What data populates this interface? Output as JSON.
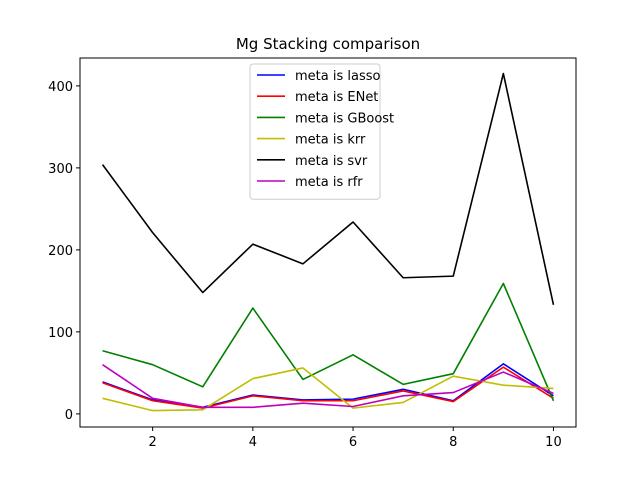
{
  "chart_data": {
    "type": "line",
    "title": "Mg Stacking comparison",
    "xlabel": "",
    "ylabel": "",
    "x": [
      1,
      2,
      3,
      4,
      5,
      6,
      7,
      8,
      9,
      10
    ],
    "xlim": [
      0.55,
      10.45
    ],
    "ylim": [
      -16,
      434
    ],
    "xticks": [
      2,
      4,
      6,
      8,
      10
    ],
    "yticks": [
      0,
      100,
      200,
      300,
      400
    ],
    "grid": false,
    "legend_position": "top-center",
    "series": [
      {
        "name": "meta is lasso",
        "color": "#0000ff",
        "values": [
          39,
          17,
          8,
          23,
          17,
          18,
          30,
          16,
          61,
          22
        ]
      },
      {
        "name": "meta is ENet",
        "color": "#ff0000",
        "values": [
          38,
          16,
          7,
          22,
          16,
          16,
          28,
          15,
          57,
          19
        ]
      },
      {
        "name": "meta is GBoost",
        "color": "#008000",
        "values": [
          77,
          60,
          33,
          129,
          42,
          72,
          36,
          49,
          159,
          16
        ]
      },
      {
        "name": "meta is krr",
        "color": "#bfbf00",
        "values": [
          19,
          4,
          5,
          43,
          56,
          7,
          14,
          46,
          35,
          31
        ]
      },
      {
        "name": "meta is svr",
        "color": "#000000",
        "values": [
          304,
          221,
          148,
          207,
          183,
          234,
          166,
          168,
          415,
          133
        ]
      },
      {
        "name": "meta is rfr",
        "color": "#bf00bf",
        "values": [
          60,
          19,
          8,
          8,
          13,
          9,
          22,
          26,
          51,
          25
        ]
      }
    ]
  }
}
